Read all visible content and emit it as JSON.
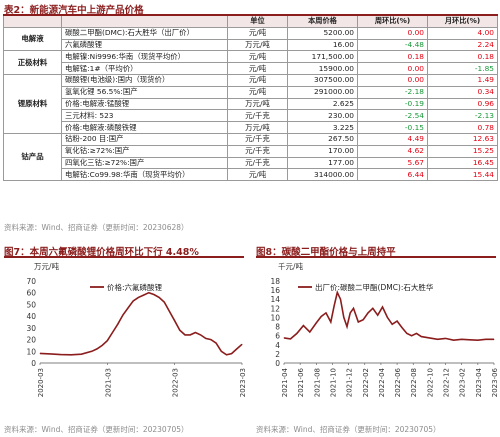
{
  "table": {
    "title": "表2：新能源汽车中上游产品价格",
    "headers": [
      "",
      "",
      "单位",
      "本周价格",
      "周环比(%)",
      "月环比(%)"
    ],
    "groups": [
      {
        "category": "电解液",
        "rows": [
          {
            "name": "碳酸二甲酯(DMC):石大胜华（出厂价）",
            "unit": "元/吨",
            "price": "5200.00",
            "wow": "0.00",
            "wow_dir": "up",
            "mom": "4.00",
            "mom_dir": "up"
          },
          {
            "name": "六氟磷酸锂",
            "unit": "万元/吨",
            "price": "16.00",
            "wow": "-4.48",
            "wow_dir": "down",
            "mom": "2.24",
            "mom_dir": "up"
          }
        ]
      },
      {
        "category": "正极材料",
        "rows": [
          {
            "name": "电解镍:Ni9996:华南（现货平均价）",
            "unit": "元/吨",
            "price": "171,500.00",
            "wow": "0.18",
            "wow_dir": "up",
            "mom": "0.18",
            "mom_dir": "up"
          },
          {
            "name": "电解锰:1#（平均价）",
            "unit": "元/吨",
            "price": "15900.00",
            "wow": "0.00",
            "wow_dir": "up",
            "mom": "-1.85",
            "mom_dir": "down"
          }
        ]
      },
      {
        "category": "锂原材料",
        "rows": [
          {
            "name": "碳酸锂(电池级):国内（现货价）",
            "unit": "元/吨",
            "price": "307500.00",
            "wow": "0.00",
            "wow_dir": "up",
            "mom": "1.49",
            "mom_dir": "up"
          },
          {
            "name": "氢氧化锂 56.5%:国产",
            "unit": "元/吨",
            "price": "291000.00",
            "wow": "-2.18",
            "wow_dir": "down",
            "mom": "0.34",
            "mom_dir": "up"
          },
          {
            "name": "价格:电解液:锰酸锂",
            "unit": "万元/吨",
            "price": "2.625",
            "wow": "-0.19",
            "wow_dir": "down",
            "mom": "0.96",
            "mom_dir": "up"
          },
          {
            "name": "三元材料: 523",
            "unit": "元/千克",
            "price": "230.00",
            "wow": "-2.54",
            "wow_dir": "down",
            "mom": "-2.13",
            "mom_dir": "down"
          },
          {
            "name": "价格:电解液:磷酸铁锂",
            "unit": "万元/吨",
            "price": "3.225",
            "wow": "-0.15",
            "wow_dir": "down",
            "mom": "0.78",
            "mom_dir": "up"
          }
        ]
      },
      {
        "category": "钴产品",
        "rows": [
          {
            "name": "钴粉-200 目:国产",
            "unit": "元/千克",
            "price": "267.50",
            "wow": "4.49",
            "wow_dir": "up",
            "mom": "12.63",
            "mom_dir": "up"
          },
          {
            "name": "氧化钴:≥72%:国产",
            "unit": "元/千克",
            "price": "170.00",
            "wow": "4.62",
            "wow_dir": "up",
            "mom": "15.25",
            "mom_dir": "up"
          },
          {
            "name": "四氧化三钴:≥72%:国产",
            "unit": "元/千克",
            "price": "177.00",
            "wow": "5.67",
            "wow_dir": "up",
            "mom": "16.45",
            "mom_dir": "up"
          },
          {
            "name": "电解钴:Co99.98:华南（现货平均价）",
            "unit": "元/吨",
            "price": "314000.00",
            "wow": "6.44",
            "wow_dir": "up",
            "mom": "15.44",
            "mom_dir": "up"
          }
        ]
      }
    ],
    "source": "资料来源：Wind、招商证券（更新时间：20230628）"
  },
  "colors": {
    "accent": "#8b1d1d",
    "up": "#e60012",
    "down": "#1a9a3a",
    "line": "#8b1d1d"
  },
  "chart_data": [
    {
      "type": "line",
      "title": "图7：本周六氟磷酸锂价格周环比下行 4.48%",
      "ylabel": "万元/吨",
      "series": [
        {
          "name": "价格:六氟磷酸锂"
        }
      ],
      "ylim": [
        0,
        70
      ],
      "yticks": [
        "0",
        "10",
        "20",
        "30",
        "40",
        "50",
        "60",
        "70"
      ],
      "xticks": [
        "2020-03",
        "2021-03",
        "2022-03",
        "2023-03"
      ],
      "x": [
        0,
        2,
        4,
        6,
        8,
        10,
        11,
        12,
        13,
        14,
        15,
        16,
        17,
        18,
        19,
        20,
        21,
        22,
        23,
        24,
        25,
        26,
        27,
        28,
        29,
        30,
        31,
        32,
        33,
        34,
        35,
        36,
        37,
        38,
        39
      ],
      "values": [
        8.2,
        7.8,
        7.2,
        7.0,
        7.5,
        10,
        12,
        15,
        19,
        26,
        33,
        41,
        47,
        53,
        56,
        58,
        60,
        58.5,
        56,
        52,
        44,
        36,
        28,
        24,
        24,
        26,
        24,
        21,
        20,
        17,
        10,
        7,
        8,
        12,
        16
      ],
      "source": "资料来源：Wind、招商证券（更新时间：20230705）"
    },
    {
      "type": "line",
      "title": "图8：碳酸二甲酯价格与上周持平",
      "ylabel": "千元/吨",
      "series": [
        {
          "name": "出厂价:碳酸二甲酯(DMC):石大胜华"
        }
      ],
      "ylim": [
        0,
        18
      ],
      "yticks": [
        "0",
        "2",
        "4",
        "6",
        "8",
        "10",
        "12",
        "14",
        "16",
        "18"
      ],
      "xticks": [
        "2021-04",
        "2021-06",
        "2021-08",
        "2021-10",
        "2021-12",
        "2022-02",
        "2022-04",
        "2022-06",
        "2022-08",
        "2022-10",
        "2022-12",
        "2023-02",
        "2023-04",
        "2023-06"
      ],
      "x": [
        0,
        0.8,
        1.6,
        2.4,
        3.2,
        4.0,
        4.6,
        5.2,
        5.8,
        6.2,
        6.6,
        7.0,
        7.4,
        7.8,
        8.2,
        8.6,
        9.2,
        9.8,
        10.4,
        11.0,
        11.6,
        12.2,
        12.8,
        13.4,
        14.0,
        14.6,
        15.2,
        15.8,
        16.4,
        17.0,
        18.0,
        19.0,
        20.0,
        21.0,
        22.0,
        23.0,
        24.0,
        25.0,
        26.0
      ],
      "values": [
        5.5,
        5.3,
        6.5,
        8.2,
        6.8,
        8.8,
        10.2,
        11.0,
        9.0,
        12.5,
        15.5,
        14.0,
        10.0,
        8.0,
        11.0,
        12.0,
        9.0,
        9.5,
        11.0,
        12.0,
        10.5,
        12.3,
        10.0,
        8.5,
        9.2,
        7.8,
        6.5,
        6.0,
        6.5,
        5.8,
        5.5,
        5.2,
        5.4,
        5.0,
        5.2,
        5.1,
        5.0,
        5.2,
        5.2
      ],
      "source": "资料来源：Wind、招商证券（更新时间：20230705）"
    }
  ]
}
